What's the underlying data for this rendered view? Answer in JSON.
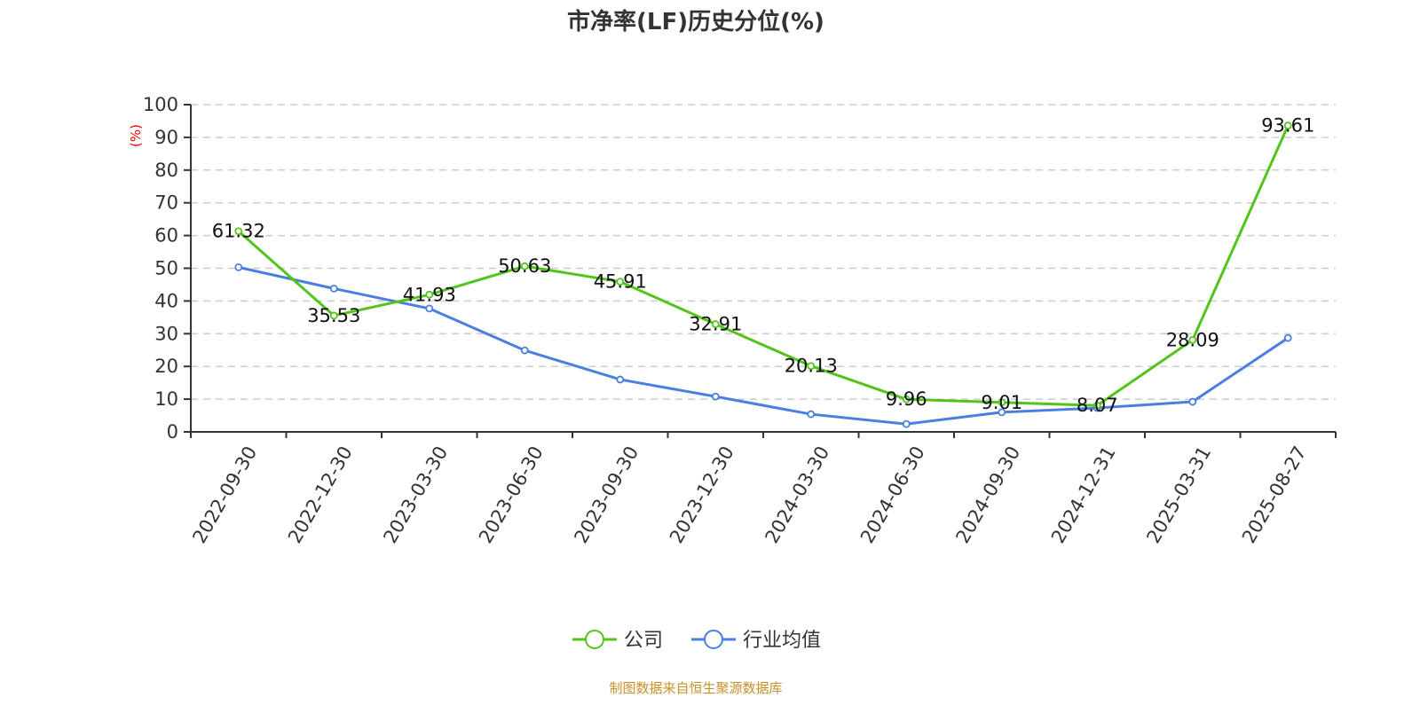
{
  "chart_data": {
    "type": "line",
    "title": "市净率(LF)历史分位(%)",
    "ylabel": "(%)",
    "ylim": [
      0,
      100
    ],
    "yticks": [
      0,
      10,
      20,
      30,
      40,
      50,
      60,
      70,
      80,
      90,
      100
    ],
    "grid": true,
    "legend_placement": "bottom",
    "categories": [
      "2022-09-30",
      "2022-12-30",
      "2023-03-30",
      "2023-06-30",
      "2023-09-30",
      "2023-12-30",
      "2024-03-30",
      "2024-06-30",
      "2024-09-30",
      "2024-12-31",
      "2025-03-31",
      "2025-08-27"
    ],
    "series": [
      {
        "name": "公司",
        "color": "#52c41a",
        "labels": true,
        "values": [
          61.32,
          35.53,
          41.93,
          50.63,
          45.91,
          32.91,
          20.13,
          9.96,
          9.01,
          8.07,
          28.09,
          93.61
        ]
      },
      {
        "name": "行业均值",
        "color": "#4a7fe0",
        "labels": false,
        "values": [
          50.3,
          43.8,
          37.7,
          24.9,
          16.0,
          10.8,
          5.4,
          2.4,
          6.0,
          7.3,
          9.2,
          28.7
        ]
      }
    ]
  },
  "footer": "制图数据来自恒生聚源数据库"
}
